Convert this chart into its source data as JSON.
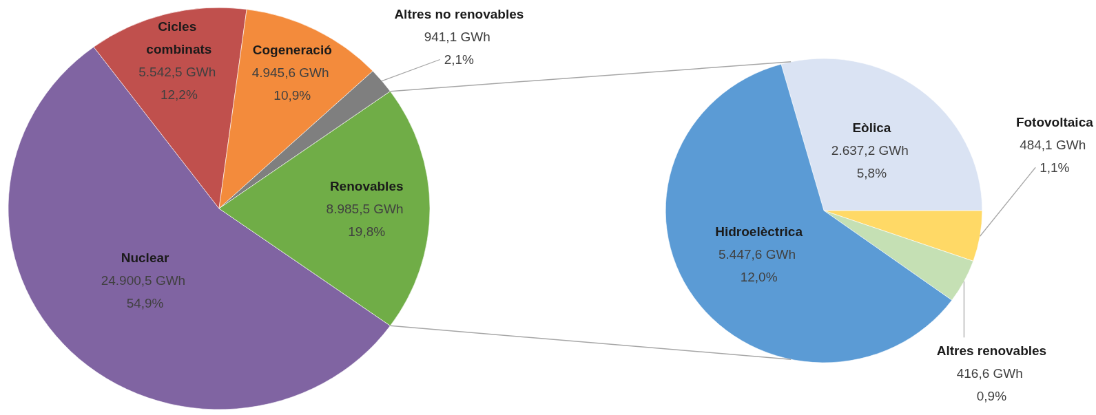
{
  "chart_data": [
    {
      "type": "pie",
      "categories": [
        "Nuclear",
        "Cicles combinats",
        "Cogeneració",
        "Altres no renovables",
        "Renovables"
      ],
      "values": [
        24900.5,
        5542.5,
        4945.6,
        941.1,
        8985.5
      ],
      "colors": [
        "#8064a2",
        "#c0504d",
        "#f38b3c",
        "#7f7f7f",
        "#70ad47"
      ],
      "value_labels": [
        "24.900,5 GWh\n54,9%",
        "5.542,5 GWh\n12,2%",
        "4.945,6 GWh\n10,9%",
        "941,1 GWh\n2,1%",
        "8.985,5 GWh\n19,8%"
      ]
    },
    {
      "type": "pie",
      "categories": [
        "Eòlica",
        "Fotovoltaica",
        "Altres renovables",
        "Hidroelèctrica"
      ],
      "values": [
        2637.2,
        484.1,
        416.6,
        5447.6
      ],
      "colors": [
        "#dae3f3",
        "#ffd966",
        "#c5e0b4",
        "#5b9bd5"
      ],
      "value_labels": [
        "2.637,2 GWh\n5,8%",
        "484,1 GWh\n1,1%",
        "416,6 GWh\n0,9%",
        "5.447,6 GWh\n12,0%"
      ]
    }
  ]
}
